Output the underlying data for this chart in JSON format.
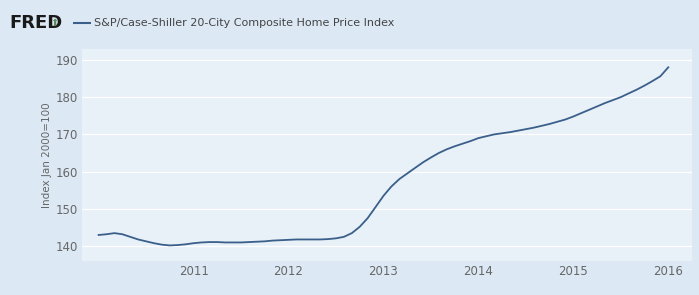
{
  "title": "S&P/Case-Shiller 20-City Composite Home Price Index",
  "ylabel": "Index Jan 2000=100",
  "line_color": "#3a5f8a",
  "bg_color": "#dce9f5",
  "plot_bg_color": "#dce9f5",
  "inner_bg_color": "#e8f0f8",
  "ylim": [
    136,
    193
  ],
  "yticks": [
    140,
    150,
    160,
    170,
    180,
    190
  ],
  "x_values": [
    2010.0,
    2010.083,
    2010.167,
    2010.25,
    2010.333,
    2010.417,
    2010.5,
    2010.583,
    2010.667,
    2010.75,
    2010.833,
    2010.917,
    2011.0,
    2011.083,
    2011.167,
    2011.25,
    2011.333,
    2011.417,
    2011.5,
    2011.583,
    2011.667,
    2011.75,
    2011.833,
    2011.917,
    2012.0,
    2012.083,
    2012.167,
    2012.25,
    2012.333,
    2012.417,
    2012.5,
    2012.583,
    2012.667,
    2012.75,
    2012.833,
    2012.917,
    2013.0,
    2013.083,
    2013.167,
    2013.25,
    2013.333,
    2013.417,
    2013.5,
    2013.583,
    2013.667,
    2013.75,
    2013.833,
    2013.917,
    2014.0,
    2014.083,
    2014.167,
    2014.25,
    2014.333,
    2014.417,
    2014.5,
    2014.583,
    2014.667,
    2014.75,
    2014.833,
    2014.917,
    2015.0,
    2015.083,
    2015.167,
    2015.25,
    2015.333,
    2015.417,
    2015.5,
    2015.583,
    2015.667,
    2015.75,
    2015.833,
    2015.917,
    2016.0
  ],
  "y_values": [
    143.0,
    143.2,
    143.5,
    143.2,
    142.5,
    141.8,
    141.3,
    140.8,
    140.4,
    140.2,
    140.3,
    140.5,
    140.8,
    141.0,
    141.1,
    141.1,
    141.0,
    141.0,
    141.0,
    141.1,
    141.2,
    141.3,
    141.5,
    141.6,
    141.7,
    141.8,
    141.8,
    141.8,
    141.8,
    141.9,
    142.1,
    142.5,
    143.5,
    145.2,
    147.5,
    150.5,
    153.5,
    156.0,
    158.0,
    159.5,
    161.0,
    162.5,
    163.8,
    165.0,
    166.0,
    166.8,
    167.5,
    168.2,
    169.0,
    169.5,
    170.0,
    170.3,
    170.6,
    171.0,
    171.4,
    171.8,
    172.3,
    172.8,
    173.4,
    174.0,
    174.8,
    175.7,
    176.6,
    177.5,
    178.4,
    179.2,
    180.0,
    181.0,
    182.0,
    183.1,
    184.3,
    185.6,
    188.0
  ],
  "xticks": [
    2011.0,
    2012.0,
    2013.0,
    2014.0,
    2015.0,
    2016.0
  ],
  "xtick_labels": [
    "2011",
    "2012",
    "2013",
    "2014",
    "2015",
    "2016"
  ],
  "xlim": [
    2009.83,
    2016.25
  ]
}
